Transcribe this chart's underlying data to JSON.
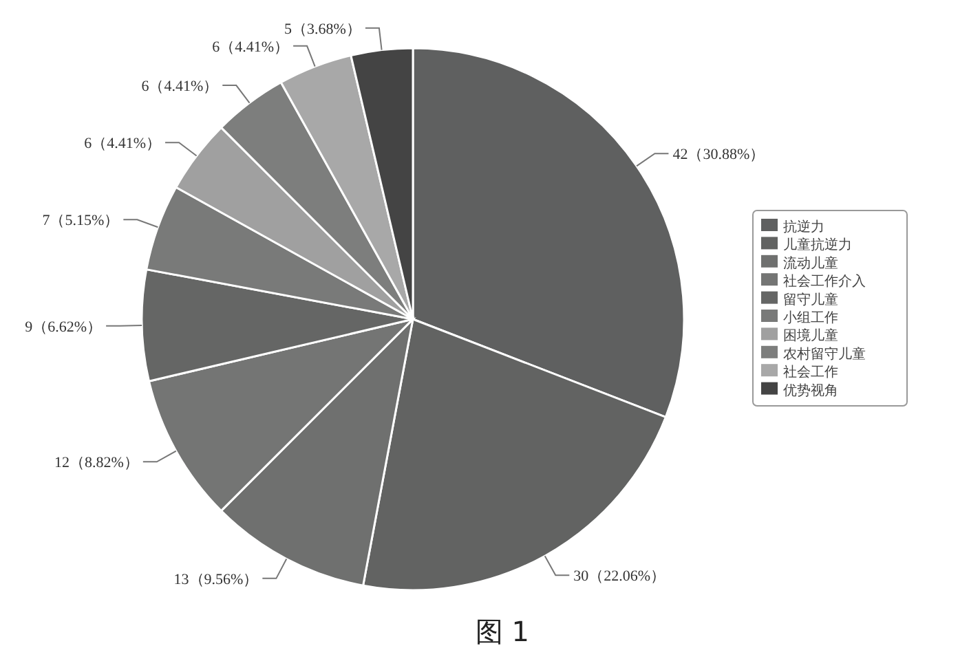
{
  "chart_data": {
    "type": "pie",
    "categories": [
      "抗逆力",
      "儿童抗逆力",
      "流动儿童",
      "社会工作介入",
      "留守儿童",
      "小组工作",
      "困境儿童",
      "农村留守儿童",
      "社会工作",
      "优势视角"
    ],
    "values": [
      42,
      30,
      13,
      12,
      9,
      7,
      6,
      6,
      6,
      5
    ],
    "colors": [
      "#5f6060",
      "#626362",
      "#6f706f",
      "#747574",
      "#656665",
      "#797a79",
      "#a0a0a0",
      "#7d7e7d",
      "#a8a8a8",
      "#444444"
    ],
    "value_labels": [
      "42（30.88%）",
      "30（22.06%）",
      "13（9.56%）",
      "12（8.82%）",
      "9（6.62%）",
      "7（5.15%）",
      "6（4.41%）",
      "6（4.41%）",
      "6（4.41%）",
      "5（3.68%）"
    ],
    "legend": "right",
    "annotations": [
      "图 1"
    ]
  }
}
